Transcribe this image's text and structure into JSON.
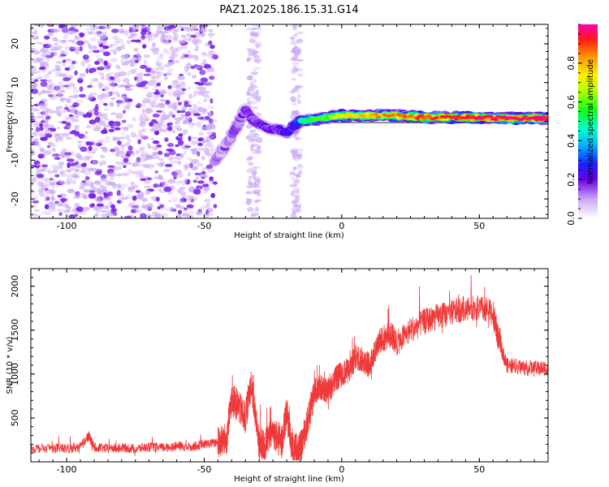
{
  "title": "PAZ1.2025.186.15.31.G14",
  "colors": {
    "snr_line": "#f03a3a",
    "spectrum_low": "#c9a6f4",
    "spectrum_mid": "#7a22e8",
    "spectrum_line_core": "#ff2a1a"
  },
  "chart_data": [
    {
      "type": "heatmap",
      "title": "PAZ1.2025.186.15.31.G14",
      "xlabel": "Height of straight line (km)",
      "ylabel": "Frequency (Hz)",
      "xlim": [
        -113,
        75
      ],
      "ylim": [
        -25,
        25
      ],
      "x_ticks": [
        -100,
        -50,
        0,
        50
      ],
      "y_ticks": [
        -20,
        -10,
        0,
        10,
        20
      ],
      "x_tick_labels": [
        "-100",
        "-50",
        "0",
        "50"
      ],
      "y_tick_labels": [
        "-20",
        "-10",
        "0",
        "10",
        "20"
      ],
      "colorbar": {
        "label": "Normalized spectral amplitude",
        "range": [
          0,
          1
        ],
        "ticks": [
          0.0,
          0.2,
          0.4,
          0.6,
          0.8
        ],
        "tick_labels": [
          "0.0",
          "0.2",
          "0.4",
          "0.6",
          "0.8"
        ]
      },
      "ridge": {
        "x": [
          -46,
          -44,
          -41,
          -38,
          -35,
          -32,
          -29,
          -26,
          -23,
          -20,
          -17,
          -15,
          -10,
          -5,
          0,
          10,
          20,
          30,
          40,
          50,
          60,
          70,
          75
        ],
        "freq": [
          -10,
          -8,
          -5,
          -1,
          3,
          0,
          -1,
          -2,
          -2,
          -3,
          -1,
          0,
          0.5,
          1,
          1.5,
          1.5,
          1.5,
          1,
          1,
          1,
          0.8,
          0.8,
          0.8
        ],
        "amplitude": [
          0.2,
          0.2,
          0.2,
          0.25,
          0.25,
          0.3,
          0.3,
          0.3,
          0.3,
          0.35,
          0.4,
          0.5,
          0.55,
          0.6,
          0.7,
          0.8,
          0.85,
          0.9,
          0.9,
          0.95,
          0.95,
          0.95,
          0.95
        ]
      },
      "noise_regions": [
        {
          "x_range": [
            -113,
            -46
          ],
          "freq_range": [
            -25,
            25
          ],
          "level": "low"
        },
        {
          "x_range": [
            -34,
            -30
          ],
          "freq_range": [
            -25,
            25
          ],
          "level": "very-low"
        },
        {
          "x_range": [
            -18,
            -15
          ],
          "freq_range": [
            -25,
            25
          ],
          "level": "very-low"
        }
      ]
    },
    {
      "type": "line",
      "xlabel": "Height of straight line (km)",
      "ylabel": "SNR (10 * v/v)",
      "xlim": [
        -113,
        75
      ],
      "ylim": [
        0,
        2200
      ],
      "x_ticks": [
        -100,
        -50,
        0,
        50
      ],
      "y_ticks": [
        500,
        1000,
        1500,
        2000
      ],
      "x_tick_labels": [
        "-100",
        "-50",
        "0",
        "50"
      ],
      "y_tick_labels": [
        "500",
        "1000",
        "1500",
        "2000"
      ],
      "series": [
        {
          "x": [
            -113,
            -105,
            -100,
            -95,
            -92,
            -90,
            -85,
            -80,
            -75,
            -70,
            -65,
            -60,
            -55,
            -50,
            -45,
            -42,
            -40,
            -38,
            -35,
            -33,
            -30,
            -28,
            -25,
            -22,
            -20,
            -18,
            -15,
            -12,
            -10,
            -8,
            -5,
            -2,
            0,
            3,
            5,
            8,
            10,
            13,
            15,
            18,
            20,
            25,
            30,
            35,
            40,
            45,
            50,
            55,
            57,
            60,
            65,
            70,
            75
          ],
          "y": [
            150,
            160,
            150,
            170,
            300,
            170,
            150,
            160,
            150,
            170,
            160,
            180,
            170,
            200,
            220,
            250,
            700,
            650,
            500,
            900,
            200,
            180,
            350,
            200,
            550,
            150,
            150,
            500,
            800,
            850,
            800,
            950,
            1000,
            1050,
            1200,
            1150,
            1100,
            1350,
            1400,
            1450,
            1350,
            1500,
            1600,
            1650,
            1700,
            1750,
            1750,
            1700,
            1400,
            1100,
            1080,
            1060,
            1070
          ]
        }
      ]
    }
  ]
}
